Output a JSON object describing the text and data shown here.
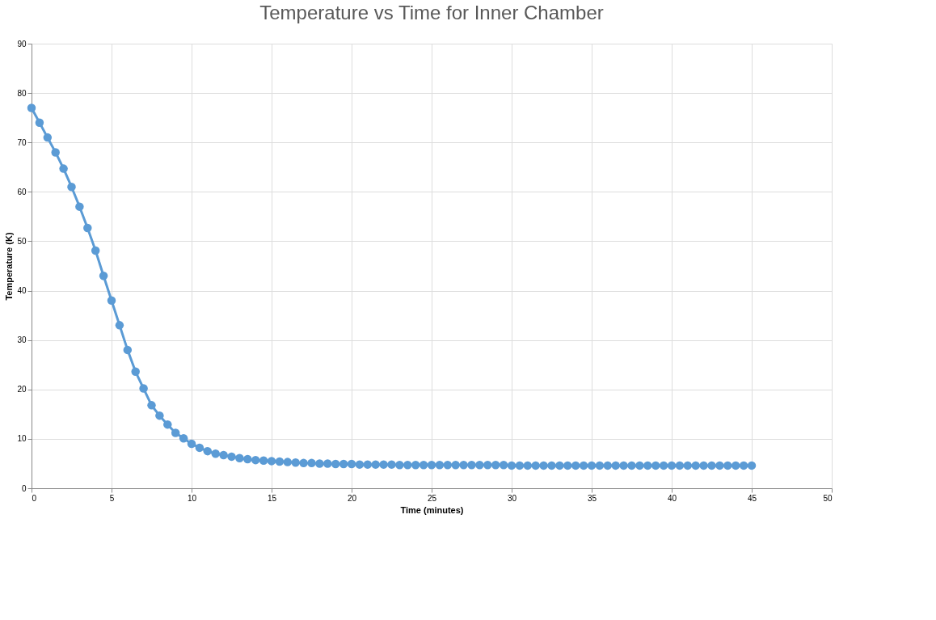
{
  "chart_data": {
    "type": "line",
    "title": "Temperature vs Time for Inner Chamber",
    "xlabel": "Time (minutes)",
    "ylabel": "Temperature (K)",
    "x": [
      0,
      0.5,
      1,
      1.5,
      2,
      2.5,
      3,
      3.5,
      4,
      4.5,
      5,
      5.5,
      6,
      6.5,
      7,
      7.5,
      8,
      8.5,
      9,
      9.5,
      10,
      10.5,
      11,
      11.5,
      12,
      12.5,
      13,
      13.5,
      14,
      14.5,
      15,
      15.5,
      16,
      16.5,
      17,
      17.5,
      18,
      18.5,
      19,
      19.5,
      20,
      20.5,
      21,
      21.5,
      22,
      22.5,
      23,
      23.5,
      24,
      24.5,
      25,
      25.5,
      26,
      26.5,
      27,
      27.5,
      28,
      28.5,
      29,
      29.5,
      30,
      30.5,
      31,
      31.5,
      32,
      32.5,
      33,
      33.5,
      34,
      34.5,
      35,
      35.5,
      36,
      36.5,
      37,
      37.5,
      38,
      38.5,
      39,
      39.5,
      40,
      40.5,
      41,
      41.5,
      42,
      42.5,
      43,
      43.5,
      44,
      44.5,
      45
    ],
    "series": [
      {
        "color": "#5b9bd5",
        "values": [
          77,
          74,
          71,
          68,
          64.7,
          61,
          57,
          52.7,
          48.1,
          43,
          38,
          33,
          28,
          23.6,
          20.2,
          16.8,
          14.7,
          12.9,
          11.2,
          10.1,
          9,
          8.2,
          7.5,
          7,
          6.7,
          6.4,
          6.1,
          5.9,
          5.7,
          5.6,
          5.5,
          5.4,
          5.3,
          5.2,
          5.1,
          5.1,
          5,
          5,
          4.9,
          4.9,
          4.9,
          4.8,
          4.8,
          4.8,
          4.8,
          4.8,
          4.7,
          4.7,
          4.7,
          4.7,
          4.7,
          4.7,
          4.7,
          4.7,
          4.7,
          4.7,
          4.7,
          4.7,
          4.7,
          4.7,
          4.6,
          4.6,
          4.6,
          4.6,
          4.6,
          4.6,
          4.6,
          4.6,
          4.6,
          4.6,
          4.6,
          4.6,
          4.6,
          4.6,
          4.6,
          4.6,
          4.6,
          4.6,
          4.6,
          4.6,
          4.6,
          4.6,
          4.6,
          4.6,
          4.6,
          4.6,
          4.6,
          4.6,
          4.6,
          4.6,
          4.6
        ]
      }
    ],
    "xlim": [
      0,
      50
    ],
    "xticks": [
      0,
      5,
      10,
      15,
      20,
      25,
      30,
      35,
      40,
      45,
      50
    ],
    "ylim": [
      0,
      90
    ],
    "yticks": [
      0,
      10,
      20,
      30,
      40,
      50,
      60,
      70,
      80,
      90
    ],
    "grid": true,
    "marker": "circle",
    "line_style": "solid"
  }
}
